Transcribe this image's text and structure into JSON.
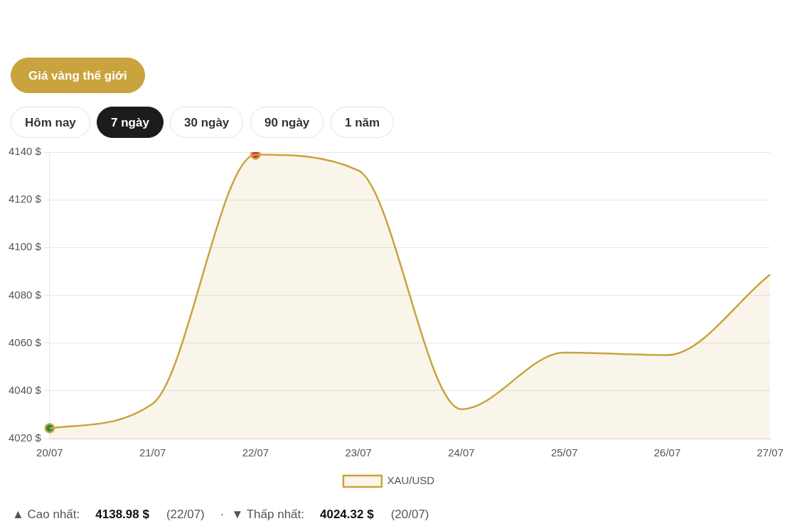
{
  "chart_data": {
    "type": "area",
    "categories": [
      "20/07",
      "21/07",
      "22/07",
      "23/07",
      "24/07",
      "25/07",
      "26/07",
      "27/07"
    ],
    "series": [
      {
        "name": "XAU/USD",
        "color": "#c9a33d",
        "marker": "none",
        "values": [
          4024.32,
          4034.6,
          4138.98,
          4132.3,
          4032.3,
          4056,
          4055,
          4088.7
        ]
      },
      {
        "type": "scatter",
        "x": [
          "22/07"
        ],
        "values": [
          4138.98
        ],
        "color": "#e0262a",
        "marker": "circle"
      },
      {
        "type": "scatter",
        "x": [
          "20/07"
        ],
        "values": [
          4024.32
        ],
        "color": "#1e8a3c",
        "marker": "circle"
      }
    ],
    "ylim": [
      4020,
      4140
    ],
    "yticks": [
      {
        "value": 4020,
        "label": "4020 $"
      },
      {
        "value": 4040,
        "label": "4040 $"
      },
      {
        "value": 4060,
        "label": "4060 $"
      },
      {
        "value": 4080,
        "label": "4080 $"
      },
      {
        "value": 4100,
        "label": "4100 $"
      },
      {
        "value": 4120,
        "label": "4120 $"
      },
      {
        "value": 4140,
        "label": "4140 $"
      }
    ],
    "grid": "y",
    "legend": "bottom",
    "annotations": [
      "Giá vàng thế giới",
      "Hôm nay",
      "7 ngày",
      "30 ngày",
      "90 ngày",
      "1 năm",
      "▲ Cao nhất:",
      "4138.98 $",
      "(22/07)",
      "·",
      "▼ Thấp nhất:",
      "4024.32 $",
      "(20/07)"
    ]
  }
}
